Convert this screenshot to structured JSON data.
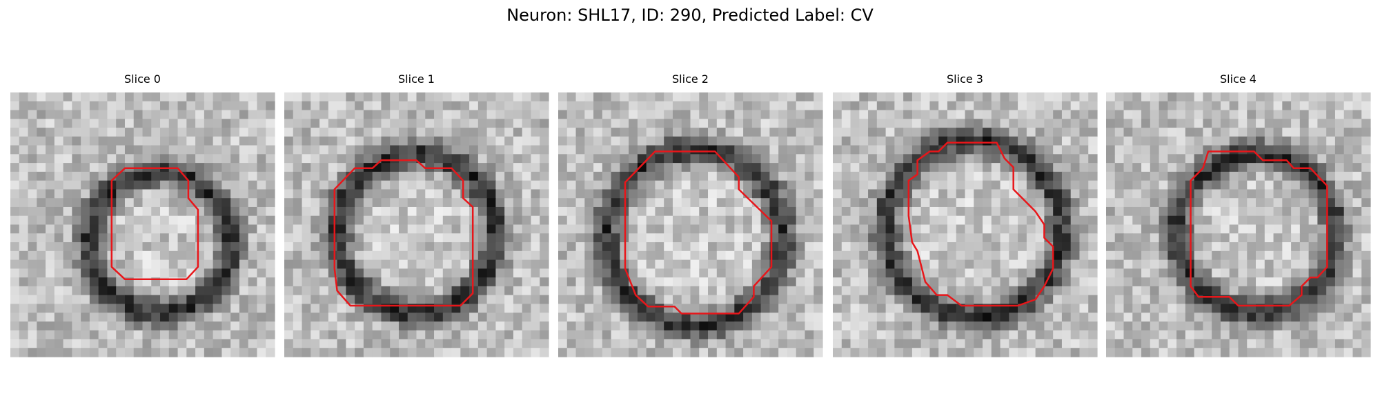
{
  "title": "Neuron: SHL17, ID: 290, Predicted Label: CV",
  "panels": [
    {
      "title": "Slice 0"
    },
    {
      "title": "Slice 1"
    },
    {
      "title": "Slice 2"
    },
    {
      "title": "Slice 3"
    },
    {
      "title": "Slice 4"
    }
  ]
}
